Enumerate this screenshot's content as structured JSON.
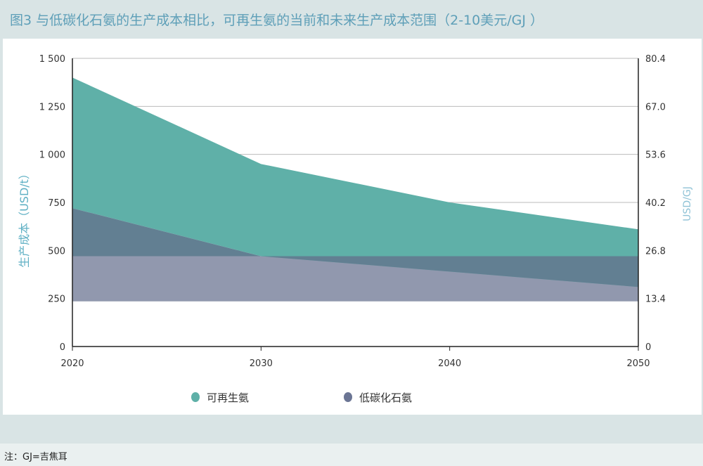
{
  "title": "图3 与低碳化石氨的生产成本相比，可再生氨的当前和未来生产成本范围（2-10美元/GJ ）",
  "note": "注：GJ=吉焦耳",
  "chart_data": {
    "type": "area",
    "title": "图3 与低碳化石氨的生产成本相比，可再生氨的当前和未来生产成本范围（2-10美元/GJ ）",
    "ylabel": "生产成本（USD/t）",
    "ylabel_right": "USD/GJ",
    "x": [
      2020,
      2030,
      2040,
      2050
    ],
    "xticks": [
      "2020",
      "2030",
      "2040",
      "2050"
    ],
    "ylim": [
      0,
      1500
    ],
    "yticks": [
      0,
      250,
      500,
      750,
      1000,
      1250,
      1500
    ],
    "ytick_labels": [
      "0",
      "250",
      "500",
      "750",
      "1 000",
      "1 250",
      "1 500"
    ],
    "yticks_right": [
      "0",
      "13.4",
      "26.8",
      "40.2",
      "53.6",
      "67.0",
      "80.4"
    ],
    "grid": true,
    "legend": "bottom",
    "series": [
      {
        "name": "可再生氨",
        "color": "#5fb0a8",
        "low": [
          720,
          470,
          390,
          310
        ],
        "high": [
          1400,
          950,
          750,
          610
        ]
      },
      {
        "name": "低碳化石氨",
        "color": "#9198ae",
        "low": [
          235,
          235,
          235,
          235
        ],
        "high": [
          470,
          470,
          470,
          470
        ]
      }
    ],
    "overlap_color": "#627f92"
  }
}
